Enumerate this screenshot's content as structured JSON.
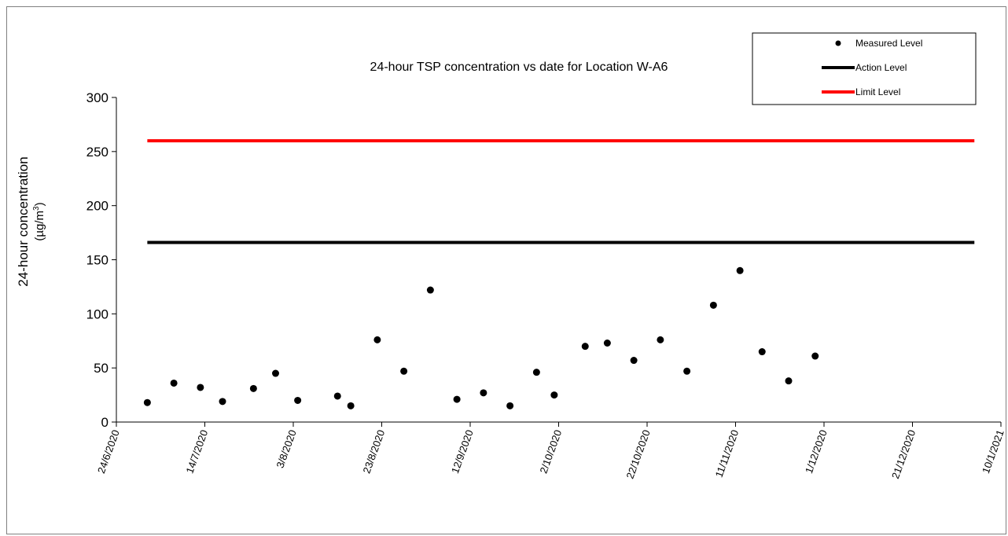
{
  "chart_data": {
    "type": "scatter",
    "title": "24-hour TSP concentration vs date for Location W-A6",
    "ylabel_line1": "24-hour concentration",
    "ylabel_line2_prefix": "(µg/m",
    "ylabel_line2_sup": "3",
    "ylabel_line2_suffix": ")",
    "ylim": [
      0,
      300
    ],
    "yticks": [
      0,
      50,
      100,
      150,
      200,
      250,
      300
    ],
    "xlim": [
      "2020-06-24",
      "2021-01-10"
    ],
    "xticks": [
      {
        "date": "2020-06-24",
        "label": "24/6/2020"
      },
      {
        "date": "2020-07-14",
        "label": "14/7/2020"
      },
      {
        "date": "2020-08-03",
        "label": "3/8/2020"
      },
      {
        "date": "2020-08-23",
        "label": "23/8/2020"
      },
      {
        "date": "2020-09-12",
        "label": "12/9/2020"
      },
      {
        "date": "2020-10-02",
        "label": "2/10/2020"
      },
      {
        "date": "2020-10-22",
        "label": "22/10/2020"
      },
      {
        "date": "2020-11-11",
        "label": "11/11/2020"
      },
      {
        "date": "2020-12-01",
        "label": "1/12/2020"
      },
      {
        "date": "2020-12-21",
        "label": "21/12/2020"
      },
      {
        "date": "2021-01-10",
        "label": "10/1/2021"
      }
    ],
    "grid": false,
    "legend_position": "top-right",
    "series": [
      {
        "name": "Measured Level",
        "kind": "scatter",
        "color": "#000000",
        "points": [
          {
            "x": "2020-07-01",
            "y": 18
          },
          {
            "x": "2020-07-07",
            "y": 36
          },
          {
            "x": "2020-07-13",
            "y": 32
          },
          {
            "x": "2020-07-18",
            "y": 19
          },
          {
            "x": "2020-07-25",
            "y": 31
          },
          {
            "x": "2020-07-30",
            "y": 45
          },
          {
            "x": "2020-08-04",
            "y": 20
          },
          {
            "x": "2020-08-13",
            "y": 24
          },
          {
            "x": "2020-08-16",
            "y": 15
          },
          {
            "x": "2020-08-22",
            "y": 76
          },
          {
            "x": "2020-08-28",
            "y": 47
          },
          {
            "x": "2020-09-03",
            "y": 122
          },
          {
            "x": "2020-09-09",
            "y": 21
          },
          {
            "x": "2020-09-15",
            "y": 27
          },
          {
            "x": "2020-09-21",
            "y": 15
          },
          {
            "x": "2020-09-27",
            "y": 46
          },
          {
            "x": "2020-10-01",
            "y": 25
          },
          {
            "x": "2020-10-08",
            "y": 70
          },
          {
            "x": "2020-10-13",
            "y": 73
          },
          {
            "x": "2020-10-19",
            "y": 57
          },
          {
            "x": "2020-10-25",
            "y": 76
          },
          {
            "x": "2020-10-31",
            "y": 47
          },
          {
            "x": "2020-11-06",
            "y": 108
          },
          {
            "x": "2020-11-12",
            "y": 140
          },
          {
            "x": "2020-11-17",
            "y": 65
          },
          {
            "x": "2020-11-23",
            "y": 38
          },
          {
            "x": "2020-11-29",
            "y": 61
          }
        ]
      },
      {
        "name": "Action Level",
        "kind": "line",
        "color": "#000000",
        "points": [
          {
            "x": "2020-07-01",
            "y": 166
          },
          {
            "x": "2021-01-04",
            "y": 166
          }
        ]
      },
      {
        "name": "Limit Level",
        "kind": "line",
        "color": "#ff0000",
        "points": [
          {
            "x": "2020-07-01",
            "y": 260
          },
          {
            "x": "2021-01-04",
            "y": 260
          }
        ]
      }
    ]
  }
}
